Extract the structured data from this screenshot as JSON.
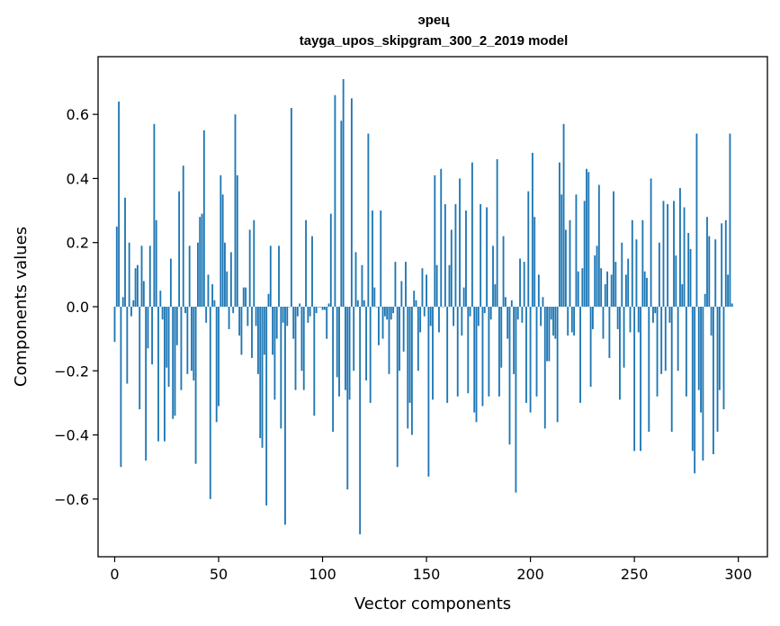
{
  "chart_data": {
    "type": "bar",
    "title": "эрец",
    "subtitle": "tayga_upos_skipgram_300_2_2019 model",
    "xlabel": "Vector components",
    "ylabel": "Components values",
    "xlim": [
      -8,
      314
    ],
    "ylim": [
      -0.78,
      0.78
    ],
    "x_ticks": [
      0,
      50,
      100,
      150,
      200,
      250,
      300
    ],
    "y_ticks": [
      -0.6,
      -0.4,
      -0.2,
      0.0,
      0.2,
      0.4,
      0.6
    ],
    "x_tick_labels": [
      "0",
      "50",
      "100",
      "150",
      "200",
      "250",
      "300"
    ],
    "y_tick_labels": [
      "−0.6",
      "−0.4",
      "−0.2",
      "0.0",
      "0.2",
      "0.4",
      "0.6"
    ],
    "bar_color": "#1f77b4",
    "values": [
      -0.11,
      0.25,
      0.64,
      -0.5,
      0.03,
      0.34,
      -0.24,
      0.2,
      -0.03,
      0.02,
      0.12,
      0.13,
      -0.32,
      0.19,
      0.08,
      -0.48,
      -0.13,
      0.19,
      -0.18,
      0.57,
      0.27,
      -0.42,
      0.05,
      -0.04,
      -0.42,
      -0.19,
      -0.25,
      0.15,
      -0.35,
      -0.34,
      -0.12,
      0.36,
      -0.26,
      0.44,
      -0.02,
      -0.21,
      0.19,
      -0.2,
      -0.23,
      -0.49,
      0.2,
      0.28,
      0.29,
      0.55,
      -0.05,
      0.1,
      -0.6,
      0.07,
      0.02,
      -0.36,
      -0.31,
      0.41,
      0.35,
      0.2,
      0.11,
      -0.07,
      0.17,
      -0.02,
      0.6,
      0.41,
      -0.09,
      -0.15,
      0.06,
      0.06,
      -0.06,
      0.24,
      -0.16,
      0.27,
      -0.06,
      -0.21,
      -0.41,
      -0.44,
      -0.15,
      -0.62,
      0.04,
      0.19,
      -0.15,
      -0.29,
      -0.1,
      0.19,
      -0.38,
      -0.05,
      -0.68,
      -0.06,
      0.0,
      0.62,
      -0.1,
      -0.26,
      -0.03,
      0.01,
      -0.2,
      -0.26,
      0.27,
      -0.05,
      -0.03,
      0.22,
      -0.34,
      -0.02,
      0.0,
      0.0,
      -0.01,
      -0.01,
      -0.1,
      0.01,
      0.29,
      -0.39,
      0.66,
      -0.22,
      -0.28,
      0.58,
      0.71,
      -0.26,
      -0.57,
      -0.29,
      0.65,
      -0.2,
      0.17,
      0.02,
      -0.71,
      0.13,
      0.02,
      -0.23,
      0.54,
      -0.3,
      0.3,
      0.06,
      0.0,
      -0.12,
      0.3,
      -0.1,
      -0.03,
      -0.04,
      -0.21,
      -0.04,
      -0.02,
      0.14,
      -0.5,
      -0.2,
      0.08,
      -0.14,
      0.14,
      -0.38,
      -0.3,
      -0.4,
      0.05,
      0.02,
      -0.2,
      -0.08,
      0.12,
      -0.03,
      0.1,
      -0.53,
      -0.06,
      -0.29,
      0.41,
      0.13,
      -0.08,
      0.43,
      0.0,
      0.32,
      -0.3,
      0.13,
      0.24,
      -0.06,
      0.32,
      -0.28,
      0.4,
      -0.09,
      0.06,
      0.3,
      -0.27,
      -0.03,
      0.45,
      -0.33,
      -0.36,
      -0.06,
      0.32,
      -0.31,
      -0.02,
      0.31,
      -0.28,
      -0.04,
      0.19,
      0.07,
      0.46,
      -0.28,
      -0.19,
      0.22,
      0.03,
      -0.1,
      -0.43,
      0.02,
      -0.21,
      -0.58,
      -0.04,
      0.15,
      -0.05,
      0.14,
      -0.3,
      0.36,
      -0.33,
      0.48,
      0.28,
      -0.28,
      0.1,
      -0.06,
      0.03,
      -0.38,
      -0.17,
      -0.17,
      -0.04,
      -0.09,
      -0.1,
      -0.36,
      0.45,
      0.35,
      0.57,
      0.24,
      -0.09,
      0.27,
      -0.08,
      -0.09,
      0.35,
      0.11,
      -0.3,
      0.12,
      0.33,
      0.43,
      0.42,
      -0.25,
      -0.07,
      0.16,
      0.19,
      0.38,
      0.12,
      -0.1,
      0.07,
      0.11,
      -0.16,
      0.1,
      0.36,
      0.14,
      -0.07,
      -0.29,
      0.2,
      -0.19,
      0.1,
      0.15,
      -0.08,
      0.27,
      -0.45,
      0.21,
      -0.08,
      -0.45,
      0.27,
      0.11,
      0.09,
      -0.39,
      0.4,
      -0.05,
      -0.02,
      -0.28,
      0.2,
      -0.21,
      0.33,
      -0.2,
      0.32,
      -0.05,
      -0.39,
      0.33,
      0.16,
      -0.2,
      0.37,
      0.07,
      0.31,
      -0.28,
      0.23,
      0.18,
      -0.45,
      -0.52,
      0.54,
      -0.26,
      -0.33,
      -0.48,
      0.04,
      0.28,
      0.22,
      -0.09,
      -0.46,
      0.21,
      -0.39,
      -0.26,
      0.26,
      -0.32,
      0.27,
      0.1,
      0.54,
      0.01
    ]
  }
}
